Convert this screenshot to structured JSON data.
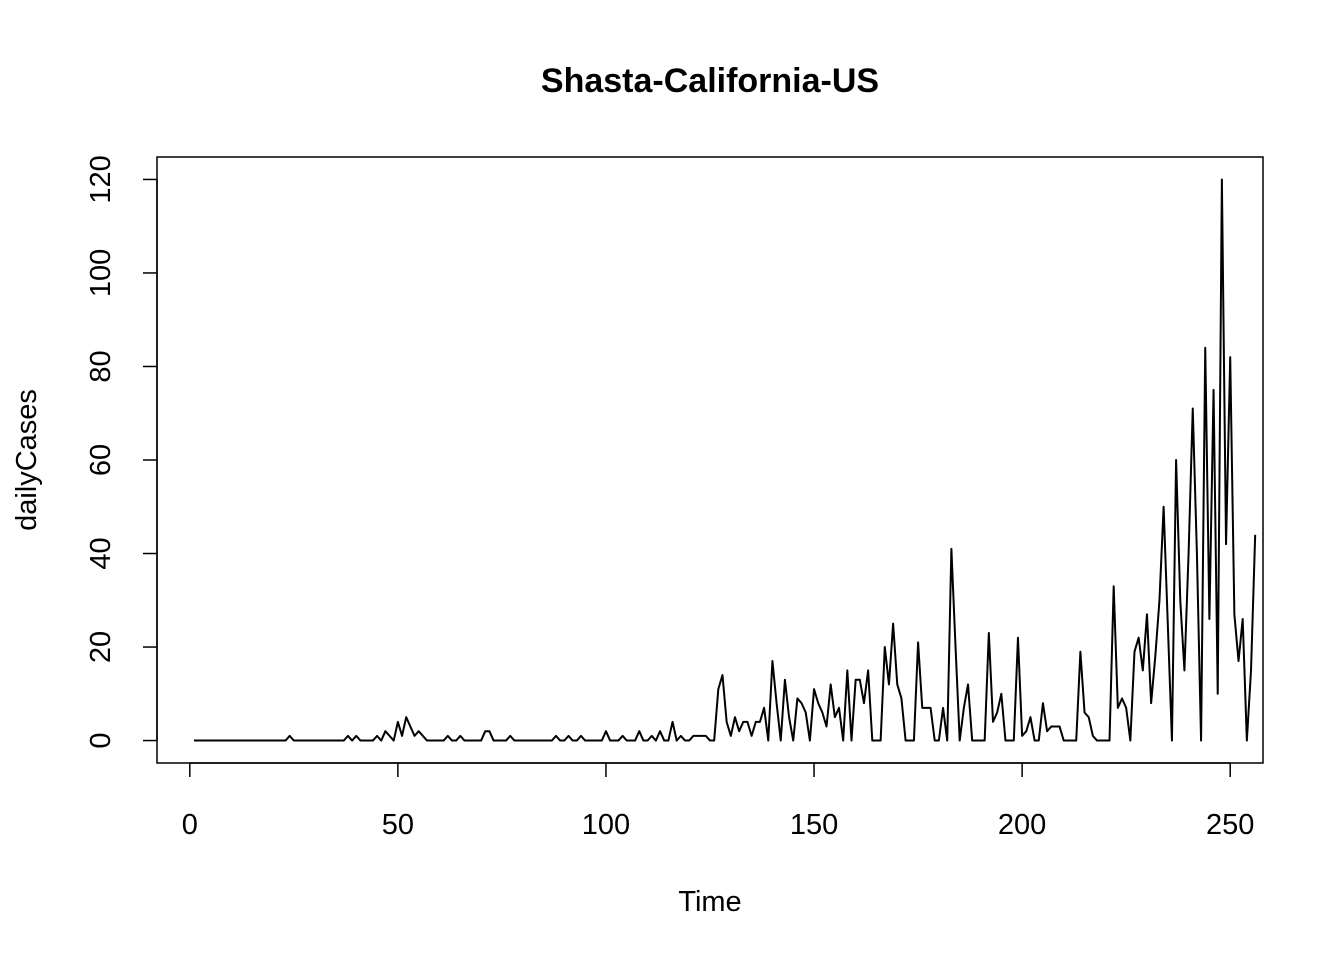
{
  "chart_data": {
    "type": "line",
    "title": "Shasta-California-US",
    "xlabel": "Time",
    "ylabel": "dailyCases",
    "xlim": [
      -7.88,
      257.88
    ],
    "ylim": [
      -4.8,
      124.8
    ],
    "x_ticks": [
      0,
      50,
      100,
      150,
      200,
      250
    ],
    "y_ticks": [
      0,
      20,
      40,
      60,
      80,
      100,
      120
    ],
    "grid": false,
    "legend": "none",
    "line_color": "#000000",
    "series": [
      {
        "x_start": 1,
        "values": [
          0,
          0,
          0,
          0,
          0,
          0,
          0,
          0,
          0,
          0,
          0,
          0,
          0,
          0,
          0,
          0,
          0,
          0,
          0,
          0,
          0,
          0,
          0,
          1,
          0,
          0,
          0,
          0,
          0,
          0,
          0,
          0,
          0,
          0,
          0,
          0,
          0,
          1,
          0,
          1,
          0,
          0,
          0,
          0,
          1,
          0,
          2,
          1,
          0,
          4,
          1,
          5,
          3,
          1,
          2,
          1,
          0,
          0,
          0,
          0,
          0,
          1,
          0,
          0,
          1,
          0,
          0,
          0,
          0,
          0,
          2,
          2,
          0,
          0,
          0,
          0,
          1,
          0,
          0,
          0,
          0,
          0,
          0,
          0,
          0,
          0,
          0,
          1,
          0,
          0,
          1,
          0,
          0,
          1,
          0,
          0,
          0,
          0,
          0,
          2,
          0,
          0,
          0,
          1,
          0,
          0,
          0,
          2,
          0,
          0,
          1,
          0,
          2,
          0,
          0,
          4,
          0,
          1,
          0,
          0,
          1,
          1,
          1,
          1,
          0,
          0,
          11,
          14,
          4,
          1,
          5,
          2,
          4,
          4,
          1,
          4,
          4,
          7,
          0,
          17,
          8,
          0,
          13,
          5,
          0,
          9,
          8,
          6,
          0,
          11,
          8,
          6,
          3,
          12,
          5,
          7,
          0,
          15,
          0,
          13,
          13,
          8,
          15,
          0,
          0,
          0,
          20,
          12,
          25,
          12,
          9,
          0,
          0,
          0,
          21,
          7,
          7,
          7,
          0,
          0,
          7,
          0,
          41,
          20,
          0,
          7,
          12,
          0,
          0,
          0,
          0,
          23,
          4,
          6,
          10,
          0,
          0,
          0,
          22,
          1,
          2,
          5,
          0,
          0,
          8,
          2,
          3,
          3,
          3,
          0,
          0,
          0,
          0,
          19,
          6,
          5,
          1,
          0,
          0,
          0,
          0,
          33,
          7,
          9,
          7,
          0,
          19,
          22,
          15,
          27,
          8,
          18,
          30,
          50,
          25,
          0,
          60,
          30,
          15,
          40,
          71,
          40,
          0,
          84,
          26,
          75,
          10,
          120,
          42,
          82,
          27,
          17,
          26,
          0,
          15,
          44
        ]
      }
    ]
  }
}
